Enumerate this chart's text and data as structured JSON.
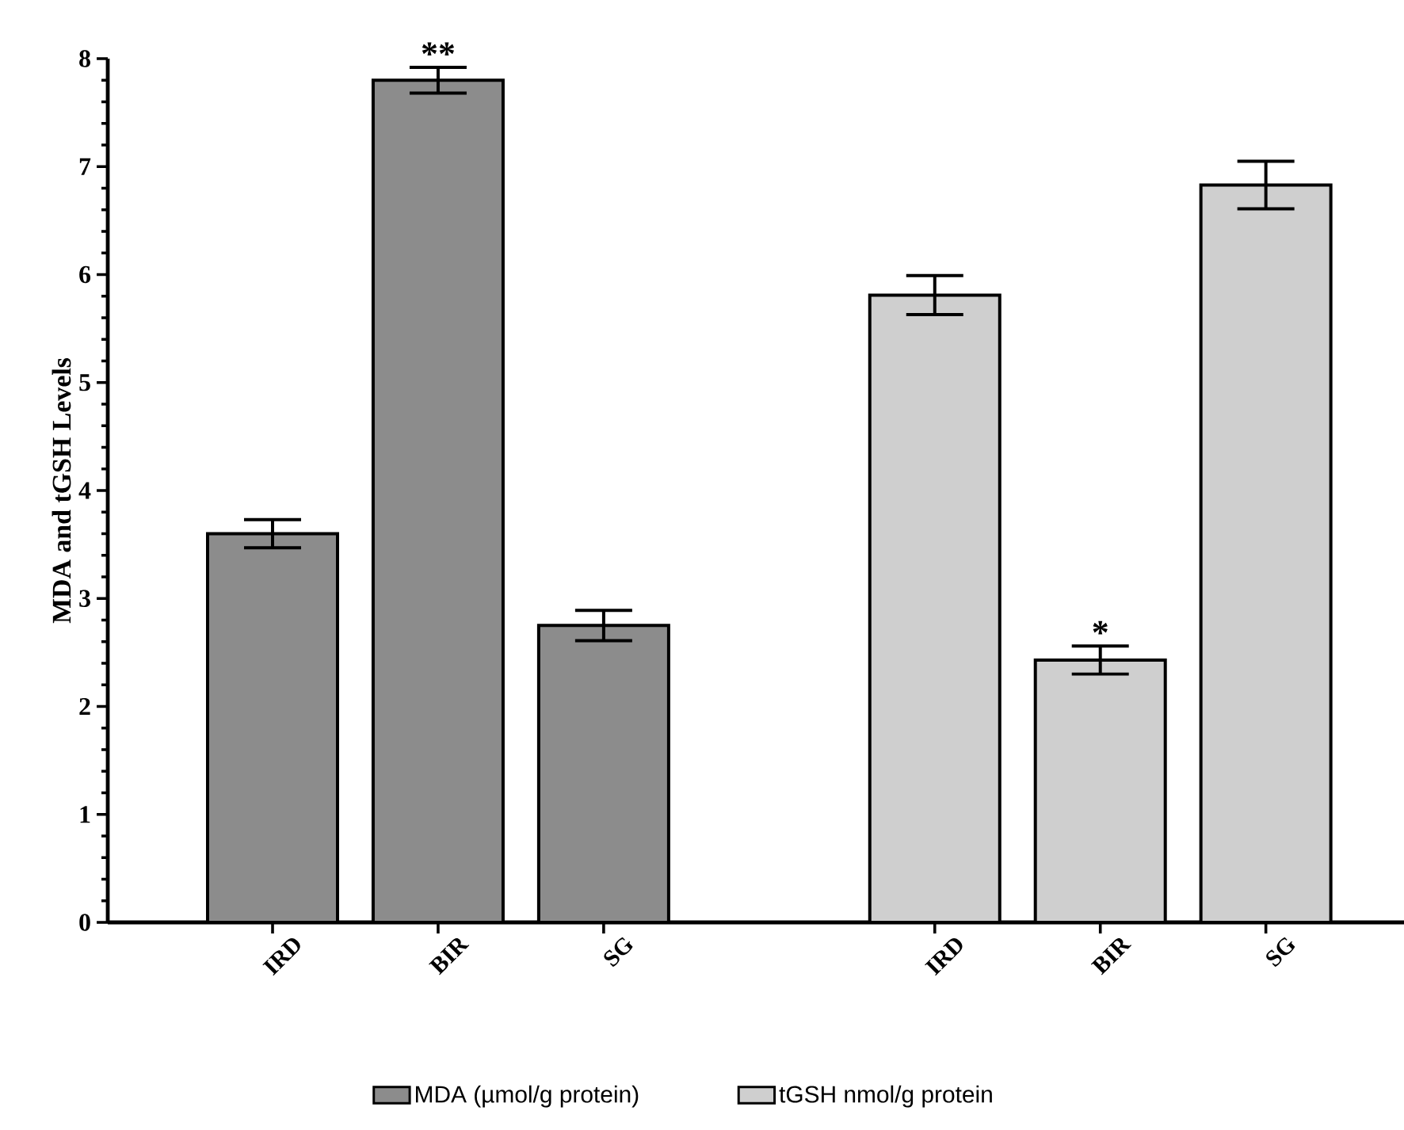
{
  "chart_data": {
    "type": "bar",
    "ylabel": "MDA and tGSH Levels",
    "categories": [
      "IRD",
      "BIR",
      "SG",
      null,
      "IRD",
      "BIR",
      "SG"
    ],
    "series": [
      {
        "name": "MDA (µmol/g protein)",
        "color": "#8c8c8c",
        "values": [
          3.6,
          7.8,
          2.75,
          null,
          null,
          null,
          null
        ],
        "errors": [
          0.13,
          0.12,
          0.14,
          null,
          null,
          null,
          null
        ],
        "value_labels": [
          null,
          "**",
          null,
          null,
          null,
          null,
          null
        ]
      },
      {
        "name": "tGSH nmol/g protein",
        "color": "#cfcfcf",
        "values": [
          null,
          null,
          null,
          null,
          5.81,
          2.43,
          6.83
        ],
        "errors": [
          null,
          null,
          null,
          null,
          0.18,
          0.13,
          0.22
        ],
        "value_labels": [
          null,
          null,
          null,
          null,
          null,
          "*",
          null
        ]
      }
    ],
    "ylim": [
      0,
      8
    ],
    "yticks": [
      0,
      1,
      2,
      3,
      4,
      5,
      6,
      7,
      8
    ],
    "grid": false,
    "legend": "bottom"
  }
}
